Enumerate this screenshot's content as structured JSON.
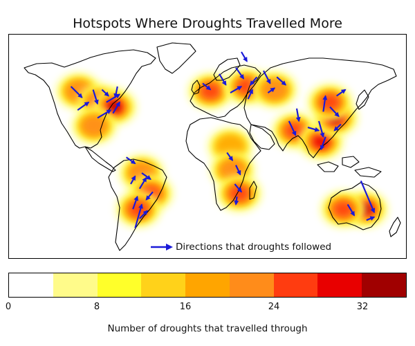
{
  "title": "Hotspots Where Droughts Travelled More",
  "legend": {
    "arrow_color": "#1a1ad8",
    "label": "Directions that droughts followed"
  },
  "colorbar": {
    "label": "Number of droughts that travelled through",
    "min": 0,
    "max": 36,
    "bins": [
      0,
      4,
      8,
      12,
      16,
      20,
      24,
      28,
      32,
      36
    ],
    "tick_values": [
      0,
      8,
      16,
      24,
      32
    ],
    "tick_labels": [
      "0",
      "8",
      "16",
      "24",
      "32"
    ],
    "colors": [
      "#ffffff",
      "#fffb8a",
      "#ffff2a",
      "#ffd21a",
      "#ffa500",
      "#ff8c1a",
      "#ff3c10",
      "#e80000",
      "#a00000",
      "#5a0000",
      "#050000"
    ]
  },
  "hotspots": [
    {
      "region": "North America west",
      "lon": -117,
      "lat": 47,
      "level": 5
    },
    {
      "region": "North America central",
      "lon": -98,
      "lat": 40,
      "level": 6
    },
    {
      "region": "North America east",
      "lon": -85,
      "lat": 37,
      "level": 8
    },
    {
      "region": "Mexico",
      "lon": -103,
      "lat": 25,
      "level": 5
    },
    {
      "region": "Amazon",
      "lon": -60,
      "lat": -5,
      "level": 5
    },
    {
      "region": "Southern Brazil",
      "lon": -52,
      "lat": -18,
      "level": 6
    },
    {
      "region": "Argentina",
      "lon": -63,
      "lat": -28,
      "level": 6
    },
    {
      "region": "Western Europe",
      "lon": 2,
      "lat": 47,
      "level": 6
    },
    {
      "region": "Eastern Europe",
      "lon": 35,
      "lat": 50,
      "level": 6
    },
    {
      "region": "Kazakhstan",
      "lon": 60,
      "lat": 48,
      "level": 5
    },
    {
      "region": "Sahel",
      "lon": 20,
      "lat": 12,
      "level": 4
    },
    {
      "region": "Central Africa",
      "lon": 22,
      "lat": -3,
      "level": 5
    },
    {
      "region": "Southern Africa",
      "lon": 28,
      "lat": -18,
      "level": 6
    },
    {
      "region": "India",
      "lon": 78,
      "lat": 22,
      "level": 6
    },
    {
      "region": "Southeast Asia",
      "lon": 102,
      "lat": 15,
      "level": 7
    },
    {
      "region": "Eastern China",
      "lon": 115,
      "lat": 30,
      "level": 8
    },
    {
      "region": "Northern China",
      "lon": 110,
      "lat": 40,
      "level": 6
    },
    {
      "region": "Eastern Australia",
      "lon": 142,
      "lat": -28,
      "level": 8
    },
    {
      "region": "Western Australia",
      "lon": 122,
      "lat": -28,
      "level": 6
    }
  ],
  "arrows": [
    {
      "from": [
        -124,
        50
      ],
      "to": [
        -114,
        43
      ]
    },
    {
      "from": [
        -118,
        35
      ],
      "to": [
        -108,
        40
      ]
    },
    {
      "from": [
        -104,
        48
      ],
      "to": [
        -100,
        39
      ]
    },
    {
      "from": [
        -96,
        48
      ],
      "to": [
        -90,
        44
      ]
    },
    {
      "from": [
        -92,
        40
      ],
      "to": [
        -80,
        45
      ]
    },
    {
      "from": [
        -86,
        33
      ],
      "to": [
        -80,
        40
      ]
    },
    {
      "from": [
        -100,
        30
      ],
      "to": [
        -88,
        35
      ]
    },
    {
      "from": [
        -82,
        50
      ],
      "to": [
        -84,
        43
      ]
    },
    {
      "from": [
        -74,
        5
      ],
      "to": [
        -66,
        1
      ]
    },
    {
      "from": [
        -60,
        -5
      ],
      "to": [
        -52,
        -9
      ]
    },
    {
      "from": [
        -62,
        -15
      ],
      "to": [
        -56,
        -8
      ]
    },
    {
      "from": [
        -50,
        -17
      ],
      "to": [
        -56,
        -22
      ]
    },
    {
      "from": [
        -66,
        -40
      ],
      "to": [
        -60,
        -25
      ]
    },
    {
      "from": [
        -62,
        -34
      ],
      "to": [
        -55,
        -29
      ]
    },
    {
      "from": [
        -70,
        -12
      ],
      "to": [
        -66,
        -7
      ]
    },
    {
      "from": [
        -68,
        -28
      ],
      "to": [
        -64,
        -20
      ]
    },
    {
      "from": [
        30,
        72
      ],
      "to": [
        35,
        66
      ]
    },
    {
      "from": [
        -5,
        52
      ],
      "to": [
        2,
        48
      ]
    },
    {
      "from": [
        10,
        58
      ],
      "to": [
        16,
        51
      ]
    },
    {
      "from": [
        20,
        46
      ],
      "to": [
        30,
        50
      ]
    },
    {
      "from": [
        25,
        62
      ],
      "to": [
        32,
        55
      ]
    },
    {
      "from": [
        36,
        42
      ],
      "to": [
        40,
        48
      ]
    },
    {
      "from": [
        44,
        56
      ],
      "to": [
        38,
        51
      ]
    },
    {
      "from": [
        50,
        60
      ],
      "to": [
        56,
        52
      ]
    },
    {
      "from": [
        62,
        56
      ],
      "to": [
        70,
        51
      ]
    },
    {
      "from": [
        54,
        46
      ],
      "to": [
        60,
        49
      ]
    },
    {
      "from": [
        25,
        0
      ],
      "to": [
        29,
        -6
      ]
    },
    {
      "from": [
        17,
        8
      ],
      "to": [
        22,
        3
      ]
    },
    {
      "from": [
        24,
        -12
      ],
      "to": [
        30,
        -17
      ]
    },
    {
      "from": [
        26,
        -20
      ],
      "to": [
        25,
        -25
      ]
    },
    {
      "from": [
        73,
        28
      ],
      "to": [
        79,
        19
      ]
    },
    {
      "from": [
        80,
        36
      ],
      "to": [
        82,
        28
      ]
    },
    {
      "from": [
        90,
        24
      ],
      "to": [
        100,
        22
      ]
    },
    {
      "from": [
        100,
        28
      ],
      "to": [
        104,
        18
      ]
    },
    {
      "from": [
        106,
        18
      ],
      "to": [
        102,
        10
      ]
    },
    {
      "from": [
        110,
        37
      ],
      "to": [
        118,
        31
      ]
    },
    {
      "from": [
        104,
        34
      ],
      "to": [
        106,
        44
      ]
    },
    {
      "from": [
        116,
        44
      ],
      "to": [
        124,
        48
      ]
    },
    {
      "from": [
        120,
        26
      ],
      "to": [
        114,
        22
      ]
    },
    {
      "from": [
        138,
        -10
      ],
      "to": [
        150,
        -30
      ]
    },
    {
      "from": [
        126,
        -25
      ],
      "to": [
        132,
        -32
      ]
    },
    {
      "from": [
        143,
        -35
      ],
      "to": [
        150,
        -33
      ]
    }
  ]
}
